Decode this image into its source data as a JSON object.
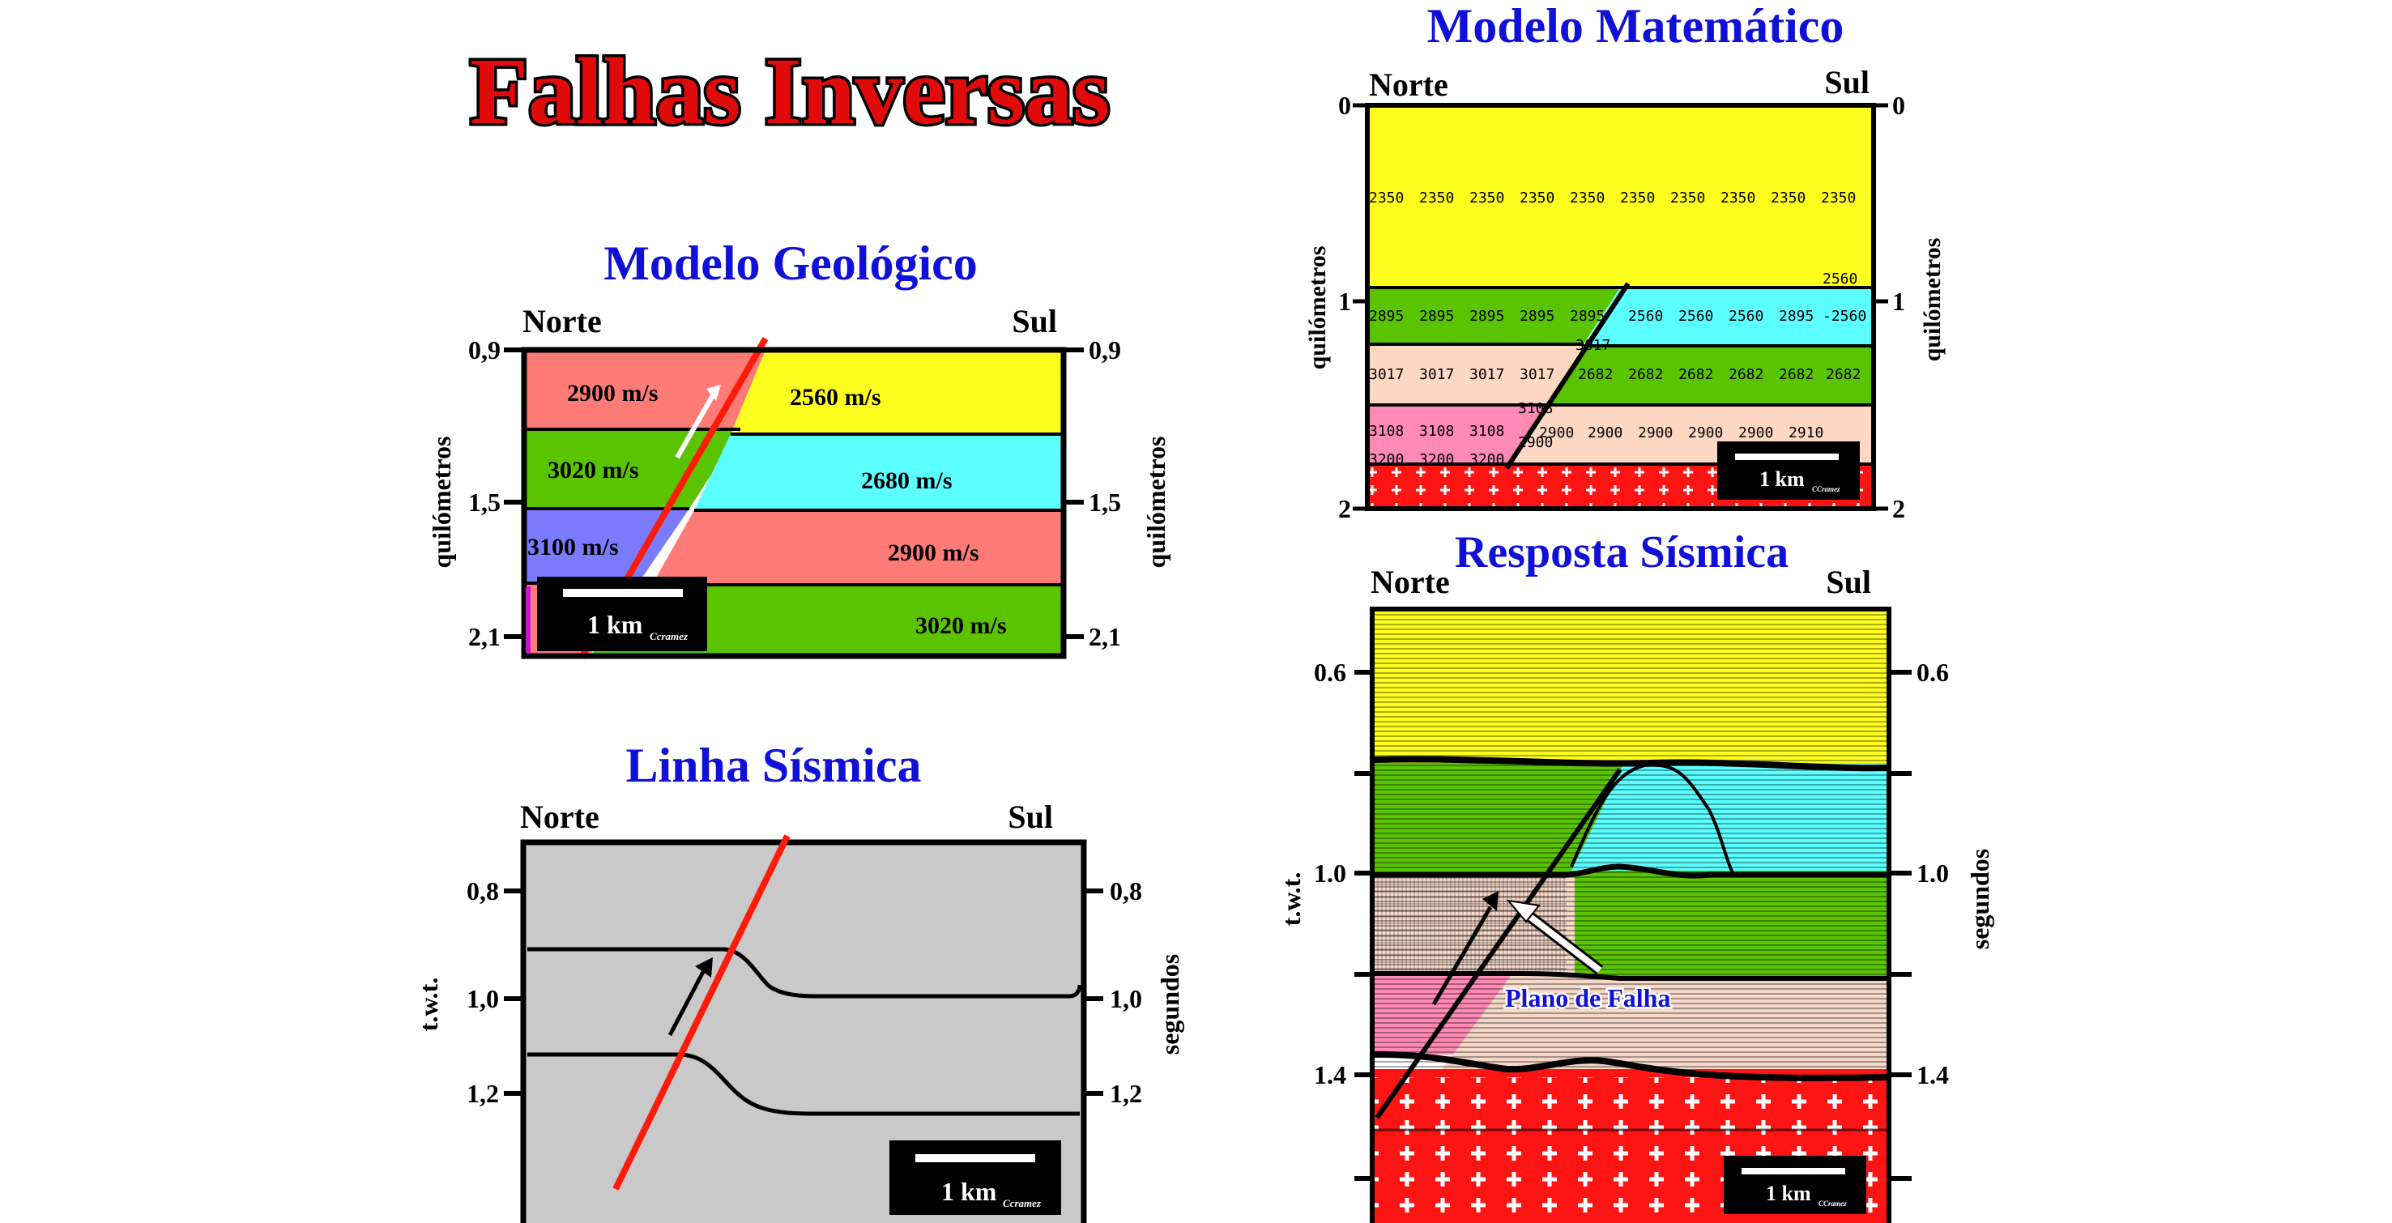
{
  "main_title": "Falhas Inversas",
  "geologic": {
    "title": "Modelo Geológico",
    "north": "Norte",
    "south": "Sul",
    "axis_label": "quilómetros",
    "ticks": [
      "0,9",
      "1,5",
      "2,1"
    ],
    "velocities": {
      "north_top": "2900 m/s",
      "north_mid": "3020 m/s",
      "north_low": "3100 m/s",
      "south_top": "2560 m/s",
      "south_mid": "2680 m/s",
      "south_low": "2900 m/s",
      "south_bottom": "3020 m/s"
    },
    "scale_label": "1 km",
    "credit": "Ccramez"
  },
  "seismic_line": {
    "title": "Linha Sísmica",
    "north": "Norte",
    "south": "Sul",
    "left_label": "t.w.t.",
    "right_label": "segundos",
    "ticks": [
      "0,8",
      "1,0",
      "1,2"
    ],
    "scale_label": "1 km",
    "credit": "Ccramez"
  },
  "math_model": {
    "title": "Modelo Matemático",
    "north": "Norte",
    "south": "Sul",
    "axis_label": "quilómetros",
    "ticks_left": [
      "0",
      "1",
      "2"
    ],
    "ticks_right": [
      "0",
      "1",
      "2"
    ],
    "row_yellow": [
      "2350",
      "2350",
      "2350",
      "2350",
      "2350",
      "2350",
      "2350",
      "2350",
      "2350",
      "2350"
    ],
    "row_yellow_tail": "2560",
    "row_green_left": [
      "2895",
      "2895",
      "2895",
      "2895",
      "2895"
    ],
    "row_cyan_right": [
      "2560",
      "2560",
      "2560",
      "2895",
      "-2560"
    ],
    "row_salmon_left": [
      "3017",
      "3017",
      "3017",
      "3017"
    ],
    "row_green_right": [
      "2682",
      "2682",
      "2682",
      "2682",
      "2682",
      "2682"
    ],
    "row_pink_left": [
      "3108",
      "3108",
      "3108"
    ],
    "row_peach_right": [
      "2900",
      "2900",
      "2900",
      "2900",
      "2900",
      "2910"
    ],
    "row_bottom_left": [
      "3200",
      "3200",
      "3200"
    ],
    "fault_labels": [
      "3017",
      "3108",
      "2900"
    ],
    "scale_label": "1 km",
    "credit": "CCramez"
  },
  "seismic_response": {
    "title": "Resposta Sísmica",
    "north": "Norte",
    "south": "Sul",
    "left_label": "t.w.t.",
    "right_label": "segundos",
    "ticks": [
      "0.6",
      "1.0",
      "1.4"
    ],
    "fault_plane_label": "Plano de Falha",
    "scale_label": "1 km",
    "credit": "CCramez"
  },
  "colors": {
    "title_red": "#e10b0b",
    "section_blue": "#1010d8",
    "salmon": "#ff7b78",
    "yellow": "#ffff1e",
    "green": "#5ac400",
    "cyan": "#5cffff",
    "lilac": "#7b7bff",
    "gray": "#c9c9c9",
    "fault_red": "#ff1a0a"
  }
}
